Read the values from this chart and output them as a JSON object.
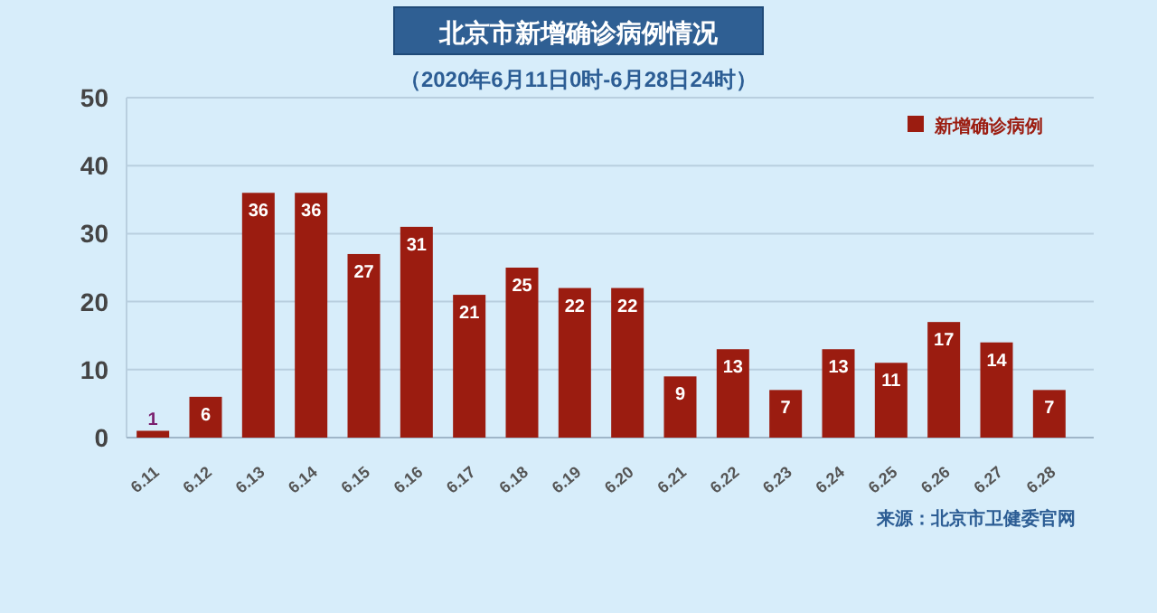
{
  "chart_data": {
    "type": "bar",
    "title": "北京市新增确诊病例情况",
    "subtitle": "（2020年6月11日0时-6月28日24时）",
    "categories": [
      "6.11",
      "6.12",
      "6.13",
      "6.14",
      "6.15",
      "6.16",
      "6.17",
      "6.18",
      "6.19",
      "6.20",
      "6.21",
      "6.22",
      "6.23",
      "6.24",
      "6.25",
      "6.26",
      "6.27",
      "6.28"
    ],
    "series": [
      {
        "name": "新增确诊病例",
        "color": "#9b1c10",
        "values": [
          1,
          6,
          36,
          36,
          27,
          31,
          21,
          25,
          22,
          22,
          9,
          13,
          7,
          13,
          11,
          17,
          14,
          7
        ]
      }
    ],
    "ylim": [
      0,
      50
    ],
    "yticks": [
      0,
      10,
      20,
      30,
      40,
      50
    ],
    "grid": "y",
    "legend": "top right",
    "data_labels": true,
    "annotations": [
      "来源：北京市卫健委官网"
    ]
  }
}
